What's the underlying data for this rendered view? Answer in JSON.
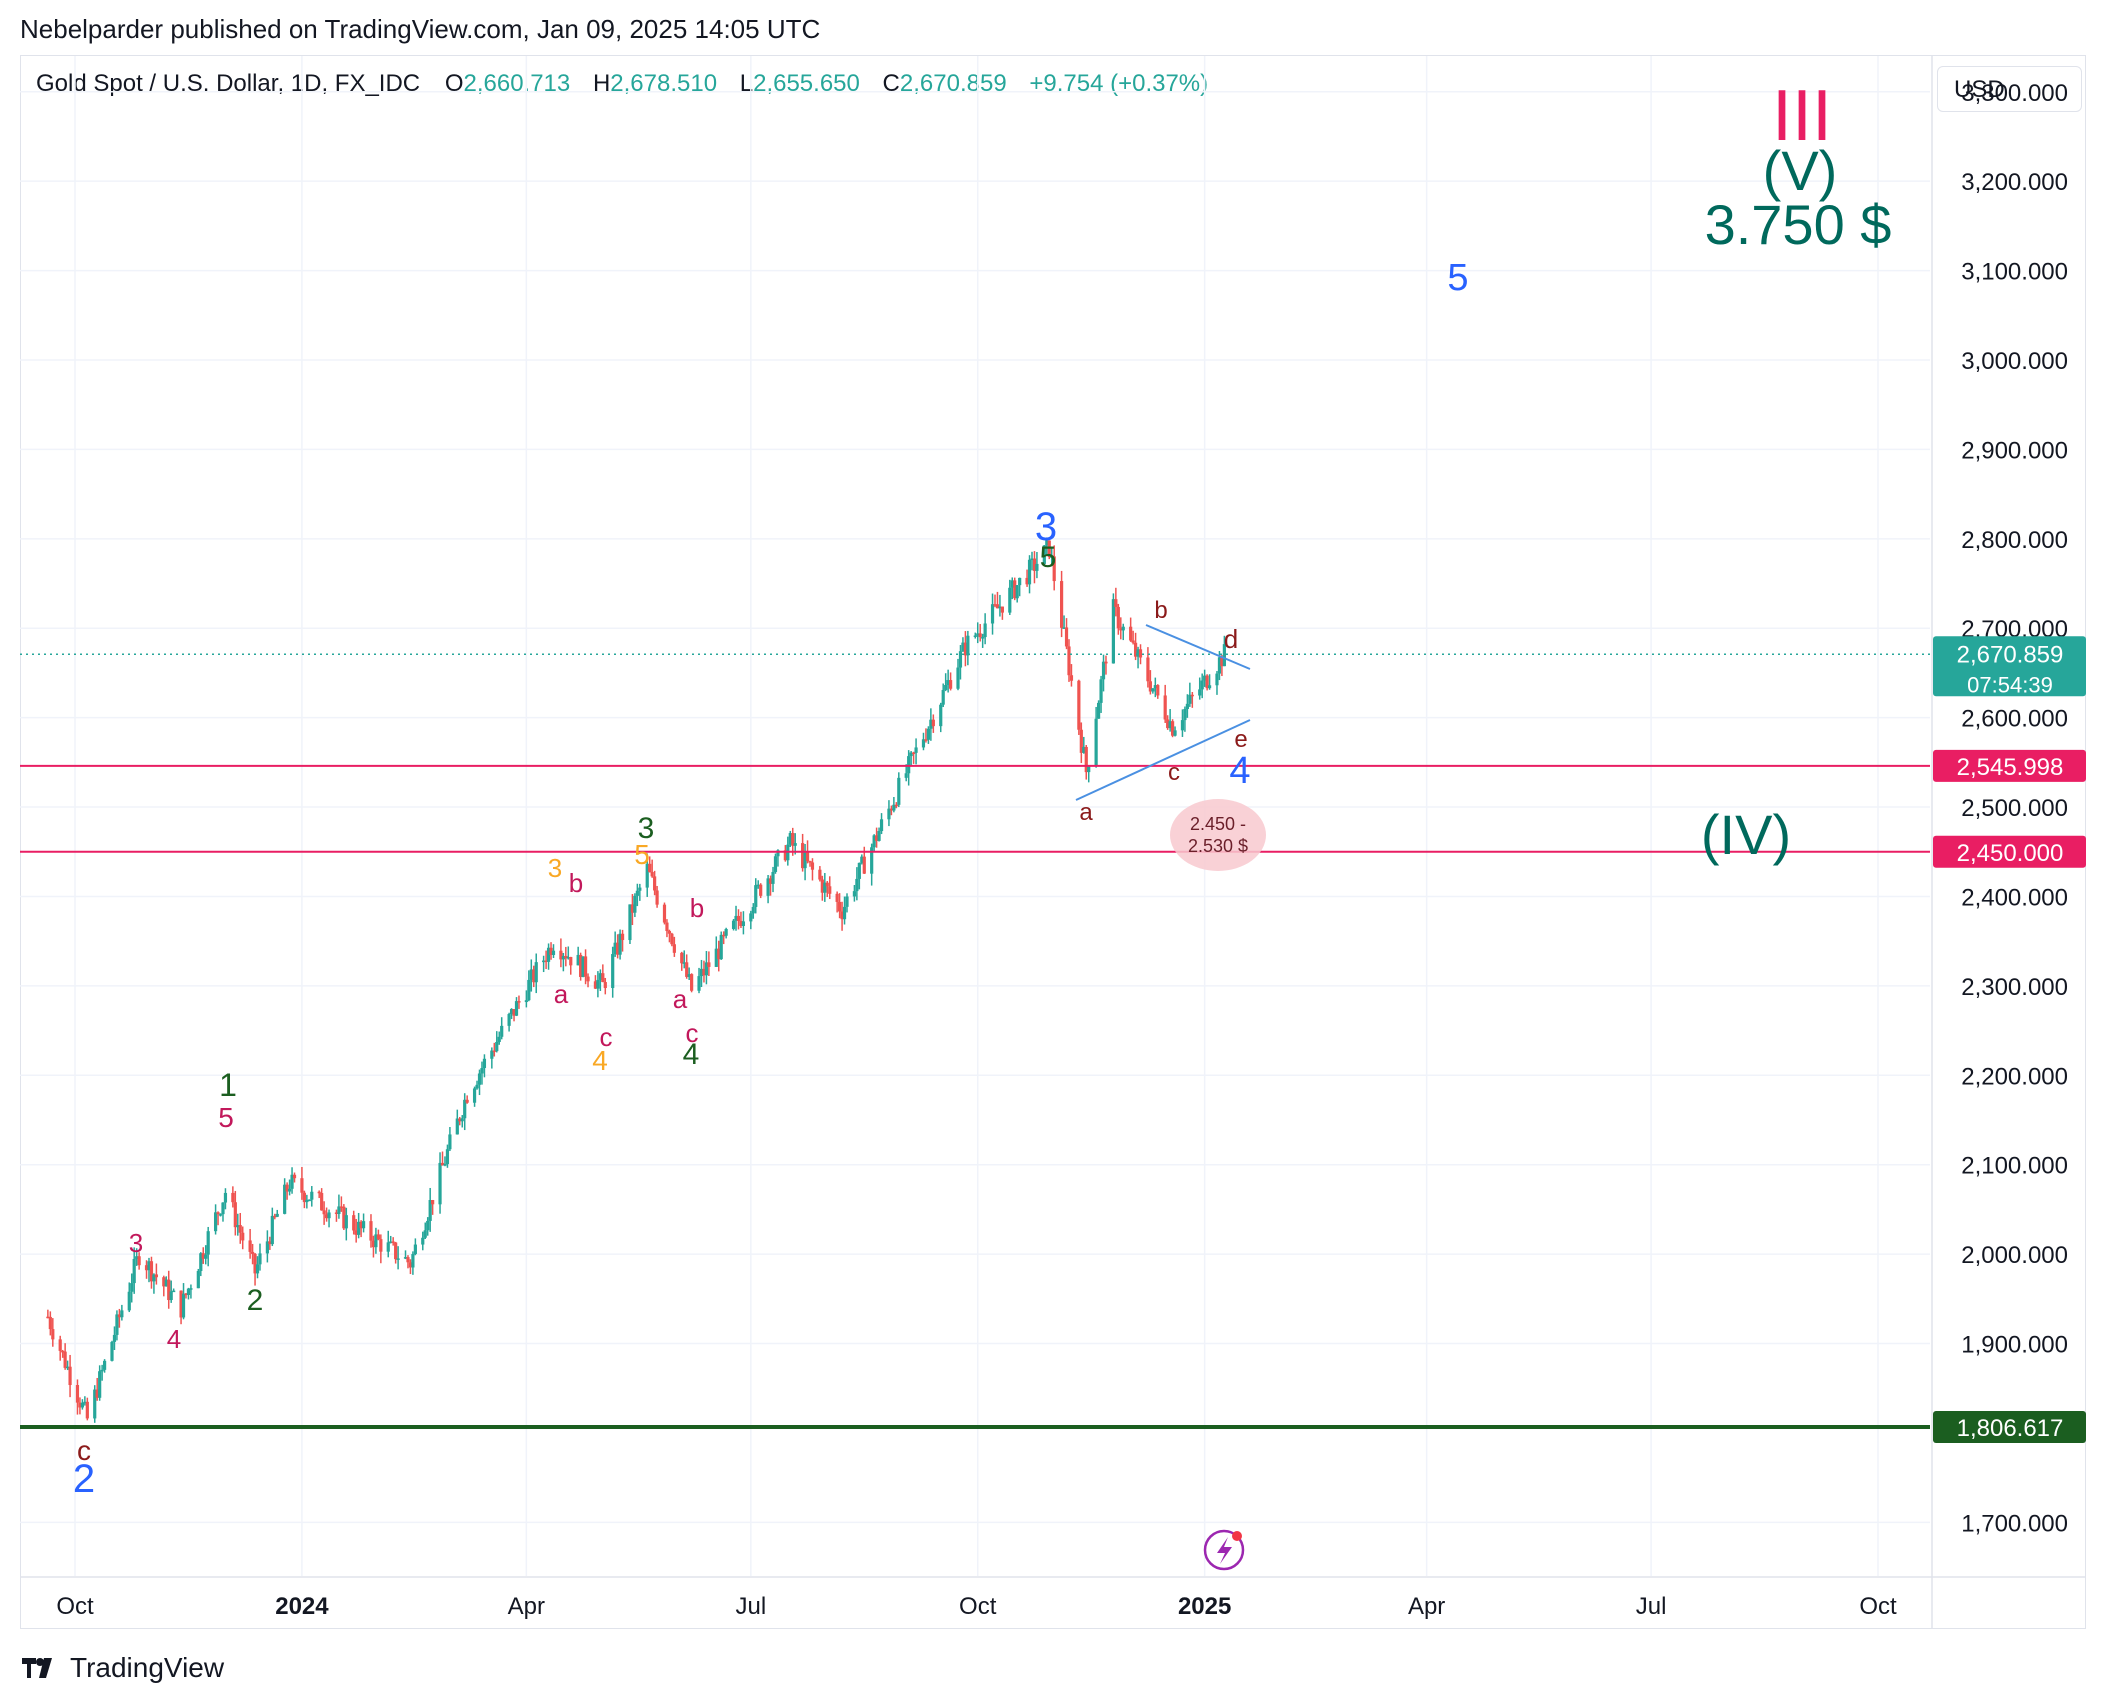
{
  "publisher_line": "Nebelparder published on TradingView.com, Jan 09, 2025 14:05 UTC",
  "symbol": {
    "title": "Gold Spot / U.S. Dollar, 1D, FX_IDC",
    "open_key": "O",
    "open": "2,660.713",
    "high_key": "H",
    "high": "2,678.510",
    "low_key": "L",
    "low": "2,655.650",
    "close_key": "C",
    "close": "2,670.859",
    "change": "+9.754 (+0.37%)"
  },
  "currency": "USD",
  "price_axis": {
    "ticks": [
      "3,300.000",
      "3,200.000",
      "3,100.000",
      "3,000.000",
      "2,900.000",
      "2,800.000",
      "2,700.000",
      "2,600.000",
      "2,500.000",
      "2,400.000",
      "2,300.000",
      "2,200.000",
      "2,100.000",
      "2,000.000",
      "1,900.000",
      "1,700.000"
    ]
  },
  "time_axis": {
    "ticks": [
      "Oct",
      "2024",
      "Apr",
      "Jul",
      "Oct",
      "2025",
      "Apr",
      "Jul",
      "Oct"
    ]
  },
  "price_tags": {
    "current": "2,670.859",
    "countdown": "07:54:39",
    "level_1": "2,545.998",
    "level_2": "2,450.000",
    "support": "1,806.617"
  },
  "annotations": {
    "target_roman": "III",
    "target_wave": "(V)",
    "target_price": "3.750 $",
    "wave_iv": "(IV)",
    "zone_line1": "2.450 -",
    "zone_line2": "2.530 $",
    "projected_wave5": "5"
  },
  "wave_labels": [
    {
      "t": "c",
      "color": "#8b1a1a"
    },
    {
      "t": "2",
      "color": "#2962ff"
    },
    {
      "t": "3",
      "color": "#c2185b"
    },
    {
      "t": "4",
      "color": "#c2185b"
    },
    {
      "t": "1",
      "color": "#1b5e20"
    },
    {
      "t": "5",
      "color": "#c2185b"
    },
    {
      "t": "2",
      "color": "#1b5e20"
    },
    {
      "t": "3",
      "color": "#f9a825"
    },
    {
      "t": "b",
      "color": "#c2185b"
    },
    {
      "t": "a",
      "color": "#c2185b"
    },
    {
      "t": "c",
      "color": "#c2185b"
    },
    {
      "t": "4",
      "color": "#f9a825"
    },
    {
      "t": "3",
      "color": "#1b5e20"
    },
    {
      "t": "5",
      "color": "#f9a825"
    },
    {
      "t": "b",
      "color": "#c2185b"
    },
    {
      "t": "a",
      "color": "#c2185b"
    },
    {
      "t": "c",
      "color": "#c2185b"
    },
    {
      "t": "4",
      "color": "#1b5e20"
    },
    {
      "t": "3",
      "color": "#2962ff"
    },
    {
      "t": "5",
      "color": "#1b5e20"
    },
    {
      "t": "b",
      "color": "#8b1a1a"
    },
    {
      "t": "d",
      "color": "#8b1a1a"
    },
    {
      "t": "e",
      "color": "#8b1a1a"
    },
    {
      "t": "c",
      "color": "#8b1a1a"
    },
    {
      "t": "a",
      "color": "#8b1a1a"
    },
    {
      "t": "4",
      "color": "#2962ff"
    }
  ],
  "brand": "TradingView",
  "colors": {
    "up": "#26a69a",
    "down": "#ef5350",
    "level_line": "#e91e63",
    "support_line": "#1b5e20",
    "current_tag": "#26a69a",
    "target": "#00695c",
    "wave_blue": "#2962ff"
  },
  "chart_data": {
    "type": "candlestick",
    "series_anchor_closes": [
      {
        "x": "2023-09-20",
        "y": 1930
      },
      {
        "x": "2023-10-06",
        "y": 1815
      },
      {
        "x": "2023-10-27",
        "y": 2000
      },
      {
        "x": "2023-11-13",
        "y": 1940
      },
      {
        "x": "2023-12-01",
        "y": 2070
      },
      {
        "x": "2023-12-13",
        "y": 1980
      },
      {
        "x": "2023-12-27",
        "y": 2080
      },
      {
        "x": "2024-02-14",
        "y": 1990
      },
      {
        "x": "2024-03-08",
        "y": 2180
      },
      {
        "x": "2024-04-12",
        "y": 2350
      },
      {
        "x": "2024-05-02",
        "y": 2300
      },
      {
        "x": "2024-05-20",
        "y": 2430
      },
      {
        "x": "2024-06-07",
        "y": 2295
      },
      {
        "x": "2024-07-17",
        "y": 2460
      },
      {
        "x": "2024-08-07",
        "y": 2385
      },
      {
        "x": "2024-09-26",
        "y": 2680
      },
      {
        "x": "2024-10-30",
        "y": 2790
      },
      {
        "x": "2024-11-14",
        "y": 2540
      },
      {
        "x": "2024-11-25",
        "y": 2720
      },
      {
        "x": "2024-12-19",
        "y": 2590
      },
      {
        "x": "2025-01-09",
        "y": 2671
      }
    ],
    "ylim": [
      1640,
      3340
    ],
    "levels": [
      2545.998,
      2450.0,
      1806.617
    ],
    "last_close": 2670.859
  }
}
